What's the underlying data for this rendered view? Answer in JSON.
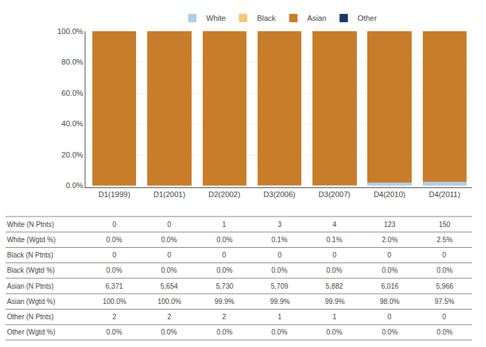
{
  "chart_data": {
    "type": "bar",
    "stacked": true,
    "categories": [
      "D1(1999)",
      "D1(2001)",
      "D2(2002)",
      "D3(2006)",
      "D3(2007)",
      "D4(2010)",
      "D4(2011)"
    ],
    "series": [
      {
        "name": "White",
        "color": "#aecde8",
        "values": [
          0.0,
          0.0,
          0.0,
          0.1,
          0.1,
          2.0,
          2.5
        ]
      },
      {
        "name": "Black",
        "color": "#f5c97a",
        "values": [
          0.0,
          0.0,
          0.0,
          0.0,
          0.0,
          0.0,
          0.0
        ]
      },
      {
        "name": "Asian",
        "color": "#c87d2a",
        "values": [
          100.0,
          100.0,
          99.9,
          99.9,
          99.9,
          98.0,
          97.5
        ]
      },
      {
        "name": "Other",
        "color": "#1a3a6b",
        "values": [
          0.0,
          0.0,
          0.0,
          0.0,
          0.0,
          0.0,
          0.0
        ]
      }
    ],
    "ylim": [
      0,
      100
    ],
    "yticks": [
      {
        "value": 0,
        "label": "0.0%"
      },
      {
        "value": 20,
        "label": "20.0%"
      },
      {
        "value": 40,
        "label": "40.0%"
      },
      {
        "value": 60,
        "label": "60.0%"
      },
      {
        "value": 80,
        "label": "80.0%"
      },
      {
        "value": 100,
        "label": "100.0%"
      }
    ],
    "grid": true,
    "legend": "top",
    "table": [
      {
        "label": "White (N Ptnts)",
        "values": [
          "0",
          "0",
          "1",
          "3",
          "4",
          "123",
          "150"
        ]
      },
      {
        "label": "White (Wgtd %)",
        "values": [
          "0.0%",
          "0.0%",
          "0.0%",
          "0.1%",
          "0.1%",
          "2.0%",
          "2.5%"
        ]
      },
      {
        "label": "Black (N Ptnts)",
        "values": [
          "0",
          "0",
          "0",
          "0",
          "0",
          "0",
          "0"
        ]
      },
      {
        "label": "Black (Wgtd %)",
        "values": [
          "0.0%",
          "0.0%",
          "0.0%",
          "0.0%",
          "0.0%",
          "0.0%",
          "0.0%"
        ]
      },
      {
        "label": "Asian (N Ptnts)",
        "values": [
          "6,371",
          "5,654",
          "5,730",
          "5,709",
          "5,882",
          "6,016",
          "5,966"
        ]
      },
      {
        "label": "Asian (Wgtd %)",
        "values": [
          "100.0%",
          "100.0%",
          "99.9%",
          "99.9%",
          "99.9%",
          "98.0%",
          "97.5%"
        ]
      },
      {
        "label": "Other (N Ptnts)",
        "values": [
          "2",
          "2",
          "2",
          "1",
          "1",
          "0",
          "0"
        ]
      },
      {
        "label": "Other (Wgtd %)",
        "values": [
          "0.0%",
          "0.0%",
          "0.0%",
          "0.0%",
          "0.0%",
          "0.0%",
          "0.0%"
        ]
      }
    ]
  }
}
